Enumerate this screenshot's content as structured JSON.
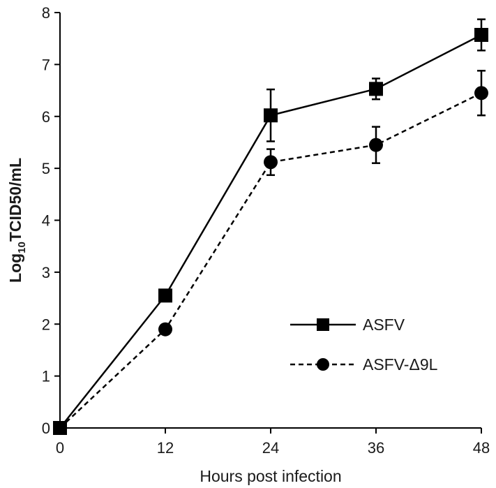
{
  "chart_data": {
    "type": "line",
    "x": [
      0,
      12,
      24,
      36,
      48
    ],
    "xlabel": "Hours post infection",
    "ylabel": {
      "prefix": "Log",
      "subscript": "10",
      "suffix": "TCID50/mL"
    },
    "xlim": [
      0,
      48
    ],
    "ylim": [
      0,
      8
    ],
    "xticks": [
      "0",
      "12",
      "24",
      "36",
      "48"
    ],
    "yticks": [
      "0",
      "1",
      "2",
      "3",
      "4",
      "5",
      "6",
      "7",
      "8"
    ],
    "grid": false,
    "legend_position": "right",
    "series": [
      {
        "name": "ASFV",
        "marker": "square",
        "line_style": "solid",
        "color": "#000000",
        "values": [
          0,
          2.55,
          6.02,
          6.53,
          7.57
        ],
        "errors": [
          0,
          0,
          0.5,
          0.2,
          0.3
        ]
      },
      {
        "name": "ASFV-Δ9L",
        "marker": "circle",
        "line_style": "dashed",
        "color": "#000000",
        "values": [
          0,
          1.9,
          5.12,
          5.45,
          6.45
        ],
        "errors": [
          0,
          0,
          0.25,
          0.35,
          0.43
        ]
      }
    ]
  }
}
